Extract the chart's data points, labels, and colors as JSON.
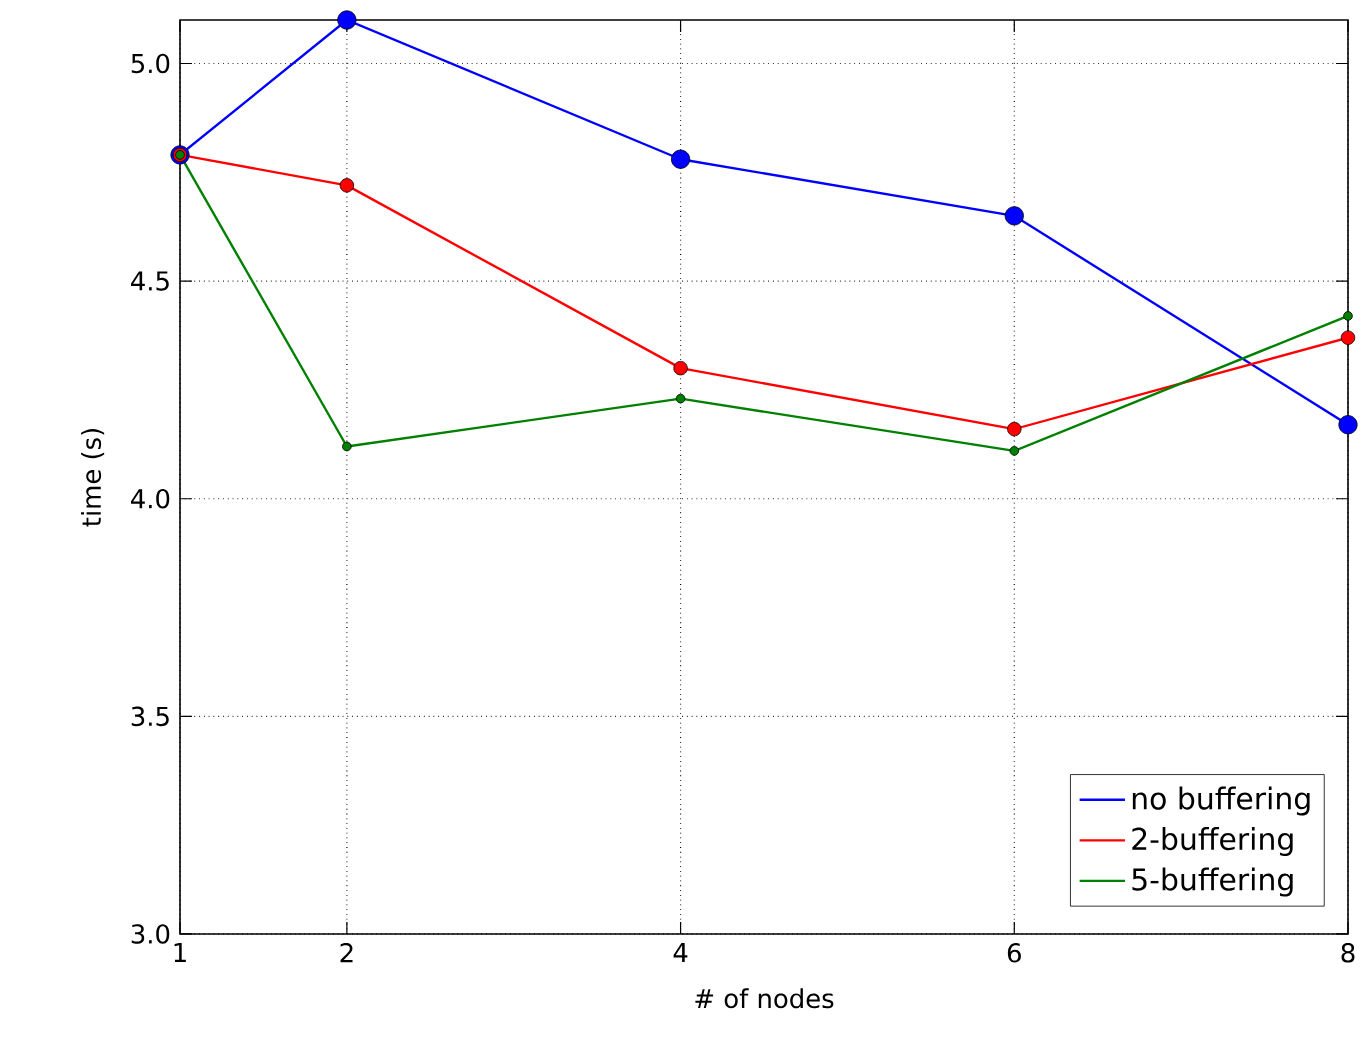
{
  "chart_data": {
    "type": "line",
    "xlabel": "# of nodes",
    "ylabel": "time (s)",
    "x": [
      1,
      2,
      4,
      6,
      8
    ],
    "series": [
      {
        "name": "no buffering",
        "color": "#0000ff",
        "values": [
          4.79,
          5.1,
          4.78,
          4.65,
          4.17
        ]
      },
      {
        "name": "2-buffering",
        "color": "#ff0000",
        "values": [
          4.79,
          4.72,
          4.3,
          4.16,
          4.37
        ]
      },
      {
        "name": "5-buffering",
        "color": "#008000",
        "values": [
          4.79,
          4.12,
          4.23,
          4.11,
          4.42
        ]
      }
    ],
    "xlim": [
      1,
      8
    ],
    "ylim": [
      3.0,
      5.1
    ],
    "xticks": [
      1,
      2,
      4,
      6,
      8
    ],
    "yticks": [
      {
        "value": 3.0,
        "label": "3.0"
      },
      {
        "value": 3.5,
        "label": "3.5"
      },
      {
        "value": 4.0,
        "label": "4.0"
      },
      {
        "value": 4.5,
        "label": "4.5"
      },
      {
        "value": 5.0,
        "label": "5.0"
      }
    ],
    "grid": true,
    "legend": "bottom right",
    "marker": "circle",
    "line_style": "solid"
  }
}
